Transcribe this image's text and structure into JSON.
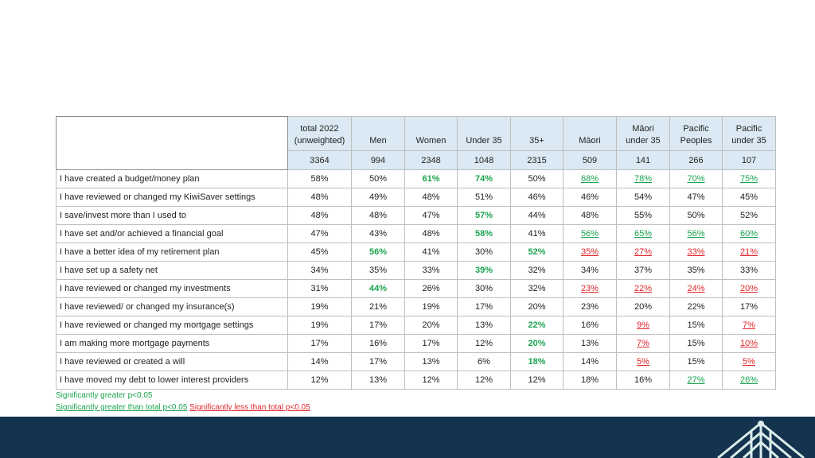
{
  "colors": {
    "significant_green": "#1ba44f",
    "significant_red": "#e0262d",
    "header_bg": "#dae9f3",
    "footer_bg": "#14334f"
  },
  "table": {
    "headers": [
      "total 2022\n(unweighted)",
      "Men",
      "Women",
      "Under 35",
      "35+",
      "Māori",
      "Māori\nunder 35",
      "Pacific\nPeoples",
      "Pacific\nunder 35"
    ],
    "bases": [
      "3364",
      "994",
      "2348",
      "1048",
      "2315",
      "509",
      "141",
      "266",
      "107"
    ],
    "rows": [
      {
        "label": "I have created a budget/money plan",
        "cells": [
          {
            "v": "58%",
            "s": ""
          },
          {
            "v": "50%",
            "s": ""
          },
          {
            "v": "61%",
            "s": "gb"
          },
          {
            "v": "74%",
            "s": "gb"
          },
          {
            "v": "50%",
            "s": ""
          },
          {
            "v": "68%",
            "s": "gu"
          },
          {
            "v": "78%",
            "s": "gu"
          },
          {
            "v": "70%",
            "s": "gu"
          },
          {
            "v": "75%",
            "s": "gu"
          }
        ]
      },
      {
        "label": "I have reviewed or changed my KiwiSaver settings",
        "cells": [
          {
            "v": "48%",
            "s": ""
          },
          {
            "v": "49%",
            "s": ""
          },
          {
            "v": "48%",
            "s": ""
          },
          {
            "v": "51%",
            "s": ""
          },
          {
            "v": "46%",
            "s": ""
          },
          {
            "v": "46%",
            "s": ""
          },
          {
            "v": "54%",
            "s": ""
          },
          {
            "v": "47%",
            "s": ""
          },
          {
            "v": "45%",
            "s": ""
          }
        ]
      },
      {
        "label": "I save/invest more than I used to",
        "cells": [
          {
            "v": "48%",
            "s": ""
          },
          {
            "v": "48%",
            "s": ""
          },
          {
            "v": "47%",
            "s": ""
          },
          {
            "v": "57%",
            "s": "gb"
          },
          {
            "v": "44%",
            "s": ""
          },
          {
            "v": "48%",
            "s": ""
          },
          {
            "v": "55%",
            "s": ""
          },
          {
            "v": "50%",
            "s": ""
          },
          {
            "v": "52%",
            "s": ""
          }
        ]
      },
      {
        "label": "I have set and/or achieved a financial goal",
        "cells": [
          {
            "v": "47%",
            "s": ""
          },
          {
            "v": "43%",
            "s": ""
          },
          {
            "v": "48%",
            "s": ""
          },
          {
            "v": "58%",
            "s": "gb"
          },
          {
            "v": "41%",
            "s": ""
          },
          {
            "v": "56%",
            "s": "gu"
          },
          {
            "v": "65%",
            "s": "gu"
          },
          {
            "v": "56%",
            "s": "gu"
          },
          {
            "v": "60%",
            "s": "gu"
          }
        ]
      },
      {
        "label": "I have a better idea of my retirement plan",
        "cells": [
          {
            "v": "45%",
            "s": ""
          },
          {
            "v": "56%",
            "s": "gb"
          },
          {
            "v": "41%",
            "s": ""
          },
          {
            "v": "30%",
            "s": ""
          },
          {
            "v": "52%",
            "s": "gb"
          },
          {
            "v": "35%",
            "s": "ru"
          },
          {
            "v": "27%",
            "s": "ru"
          },
          {
            "v": "33%",
            "s": "ru"
          },
          {
            "v": "21%",
            "s": "ru"
          }
        ]
      },
      {
        "label": "I have set up a safety net",
        "cells": [
          {
            "v": "34%",
            "s": ""
          },
          {
            "v": "35%",
            "s": ""
          },
          {
            "v": "33%",
            "s": ""
          },
          {
            "v": "39%",
            "s": "gb"
          },
          {
            "v": "32%",
            "s": ""
          },
          {
            "v": "34%",
            "s": ""
          },
          {
            "v": "37%",
            "s": ""
          },
          {
            "v": "35%",
            "s": ""
          },
          {
            "v": "33%",
            "s": ""
          }
        ]
      },
      {
        "label": "I have reviewed or changed my investments",
        "cells": [
          {
            "v": "31%",
            "s": ""
          },
          {
            "v": "44%",
            "s": "gb"
          },
          {
            "v": "26%",
            "s": ""
          },
          {
            "v": "30%",
            "s": ""
          },
          {
            "v": "32%",
            "s": ""
          },
          {
            "v": "23%",
            "s": "ru"
          },
          {
            "v": "22%",
            "s": "ru"
          },
          {
            "v": "24%",
            "s": "ru"
          },
          {
            "v": "20%",
            "s": "ru"
          }
        ]
      },
      {
        "label": "I have reviewed/ or changed my insurance(s)",
        "cells": [
          {
            "v": "19%",
            "s": ""
          },
          {
            "v": "21%",
            "s": ""
          },
          {
            "v": "19%",
            "s": ""
          },
          {
            "v": "17%",
            "s": ""
          },
          {
            "v": "20%",
            "s": ""
          },
          {
            "v": "23%",
            "s": ""
          },
          {
            "v": "20%",
            "s": ""
          },
          {
            "v": "22%",
            "s": ""
          },
          {
            "v": "17%",
            "s": ""
          }
        ]
      },
      {
        "label": "I have reviewed or changed my mortgage settings",
        "cells": [
          {
            "v": "19%",
            "s": ""
          },
          {
            "v": "17%",
            "s": ""
          },
          {
            "v": "20%",
            "s": ""
          },
          {
            "v": "13%",
            "s": ""
          },
          {
            "v": "22%",
            "s": "gb"
          },
          {
            "v": "16%",
            "s": ""
          },
          {
            "v": "9%",
            "s": "ru"
          },
          {
            "v": "15%",
            "s": ""
          },
          {
            "v": "7%",
            "s": "ru"
          }
        ]
      },
      {
        "label": "I am making more mortgage payments",
        "cells": [
          {
            "v": "17%",
            "s": ""
          },
          {
            "v": "16%",
            "s": ""
          },
          {
            "v": "17%",
            "s": ""
          },
          {
            "v": "12%",
            "s": ""
          },
          {
            "v": "20%",
            "s": "gb"
          },
          {
            "v": "13%",
            "s": ""
          },
          {
            "v": "7%",
            "s": "ru"
          },
          {
            "v": "15%",
            "s": ""
          },
          {
            "v": "10%",
            "s": "ru"
          }
        ]
      },
      {
        "label": "I have reviewed or created a will",
        "cells": [
          {
            "v": "14%",
            "s": ""
          },
          {
            "v": "17%",
            "s": ""
          },
          {
            "v": "13%",
            "s": ""
          },
          {
            "v": "6%",
            "s": ""
          },
          {
            "v": "18%",
            "s": "gb"
          },
          {
            "v": "14%",
            "s": ""
          },
          {
            "v": "5%",
            "s": "ru"
          },
          {
            "v": "15%",
            "s": ""
          },
          {
            "v": "5%",
            "s": "ru"
          }
        ]
      },
      {
        "label": "I have moved my debt to lower interest providers",
        "cells": [
          {
            "v": "12%",
            "s": ""
          },
          {
            "v": "13%",
            "s": ""
          },
          {
            "v": "12%",
            "s": ""
          },
          {
            "v": "12%",
            "s": ""
          },
          {
            "v": "12%",
            "s": ""
          },
          {
            "v": "18%",
            "s": ""
          },
          {
            "v": "16%",
            "s": ""
          },
          {
            "v": "27%",
            "s": "gu"
          },
          {
            "v": "26%",
            "s": "gu"
          }
        ]
      }
    ]
  },
  "notes": {
    "line1": "Significantly greater p<0.05",
    "line2_green": "Significantly greater than total p<0.05",
    "line2_red": "Significantly less than total p<0.05"
  },
  "footer": {
    "logo_icon": "roof-pattern-icon"
  }
}
